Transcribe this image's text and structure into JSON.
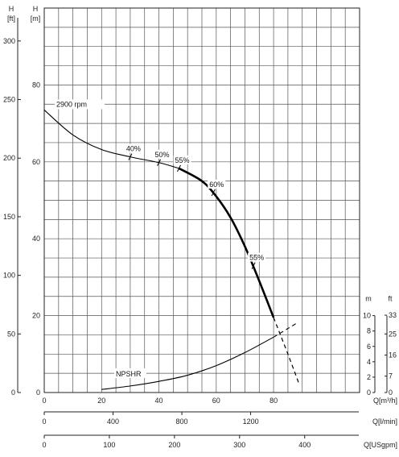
{
  "chart_data": {
    "type": "line",
    "title": "",
    "axes": {
      "x_primary": {
        "label": "Q[m³/h]",
        "range": [
          0,
          110
        ],
        "ticks": [
          0,
          20,
          40,
          60,
          80
        ]
      },
      "x_lmin": {
        "label": "Q[l/min]",
        "ticks": [
          0,
          400,
          800,
          1200
        ]
      },
      "x_usgpm": {
        "label": "Q[USgpm]",
        "ticks": [
          0,
          100,
          200,
          300,
          400
        ]
      },
      "y_left_m": {
        "label": "H [m]",
        "range": [
          0,
          100
        ],
        "ticks": [
          0,
          20,
          40,
          60,
          80
        ]
      },
      "y_left_ft": {
        "label": "H [ft]",
        "ticks": [
          0,
          50,
          100,
          150,
          200,
          250,
          300
        ]
      },
      "y_right_m": {
        "label": "m",
        "ticks": [
          0,
          2,
          4,
          6,
          8,
          10
        ]
      },
      "y_right_ft": {
        "label": "ft",
        "ticks": [
          0,
          7,
          16,
          25,
          33
        ]
      }
    },
    "series": [
      {
        "name": "2900 rpm",
        "solid": [
          [
            0,
            73.5
          ],
          [
            10,
            67
          ],
          [
            20,
            63.2
          ],
          [
            30,
            61.3
          ],
          [
            40,
            59.8
          ],
          [
            47,
            58.3
          ],
          [
            55,
            55
          ],
          [
            60,
            51
          ],
          [
            65,
            45.5
          ],
          [
            70,
            38
          ],
          [
            75,
            29
          ],
          [
            80,
            19.5
          ]
        ],
        "dashed": [
          [
            80,
            19.5
          ],
          [
            85,
            10
          ],
          [
            89,
            2
          ]
        ]
      },
      {
        "name": "NPSHR",
        "solid": [
          [
            20,
            0.4
          ],
          [
            30,
            0.85
          ],
          [
            40,
            1.45
          ],
          [
            50,
            2.25
          ],
          [
            60,
            3.5
          ],
          [
            70,
            5.2
          ],
          [
            80,
            7.2
          ]
        ],
        "dashed": [
          [
            80,
            7.2
          ],
          [
            88,
            9.0
          ]
        ]
      }
    ],
    "efficiency_labels": [
      {
        "text": "40%",
        "x": 30,
        "y": 61.3
      },
      {
        "text": "50%",
        "x": 40,
        "y": 59.8
      },
      {
        "text": "55%",
        "x": 47,
        "y": 58.3
      },
      {
        "text": "60%",
        "x": 59,
        "y": 52
      },
      {
        "text": "55%",
        "x": 73,
        "y": 33
      }
    ],
    "grid": true
  }
}
